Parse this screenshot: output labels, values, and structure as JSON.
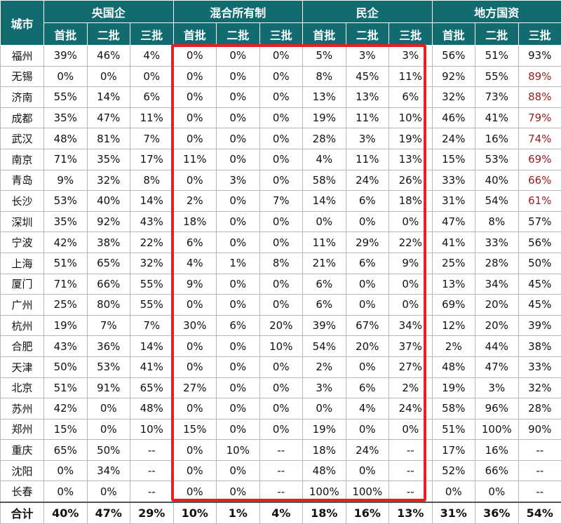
{
  "header": {
    "city_label": "城市",
    "groups": [
      "央国企",
      "混合所有制",
      "民企",
      "地方国资"
    ],
    "sub": [
      "首批",
      "二批",
      "三批"
    ]
  },
  "rows": [
    {
      "city": "福州",
      "v": [
        "39%",
        "46%",
        "4%",
        "0%",
        "0%",
        "0%",
        "5%",
        "3%",
        "3%",
        "56%",
        "51%",
        "93%"
      ]
    },
    {
      "city": "无锡",
      "v": [
        "0%",
        "0%",
        "0%",
        "0%",
        "0%",
        "0%",
        "8%",
        "45%",
        "11%",
        "92%",
        "55%",
        "89%"
      ]
    },
    {
      "city": "济南",
      "v": [
        "55%",
        "14%",
        "6%",
        "0%",
        "0%",
        "0%",
        "13%",
        "13%",
        "6%",
        "32%",
        "73%",
        "88%"
      ]
    },
    {
      "city": "成都",
      "v": [
        "35%",
        "47%",
        "11%",
        "0%",
        "0%",
        "0%",
        "19%",
        "11%",
        "10%",
        "46%",
        "41%",
        "79%"
      ]
    },
    {
      "city": "武汉",
      "v": [
        "48%",
        "81%",
        "7%",
        "0%",
        "0%",
        "0%",
        "28%",
        "3%",
        "19%",
        "24%",
        "16%",
        "74%"
      ]
    },
    {
      "city": "南京",
      "v": [
        "71%",
        "35%",
        "17%",
        "11%",
        "0%",
        "0%",
        "4%",
        "11%",
        "13%",
        "15%",
        "53%",
        "69%"
      ]
    },
    {
      "city": "青岛",
      "v": [
        "9%",
        "32%",
        "8%",
        "0%",
        "3%",
        "0%",
        "58%",
        "24%",
        "26%",
        "33%",
        "40%",
        "66%"
      ]
    },
    {
      "city": "长沙",
      "v": [
        "53%",
        "40%",
        "14%",
        "2%",
        "0%",
        "7%",
        "14%",
        "6%",
        "18%",
        "31%",
        "54%",
        "61%"
      ]
    },
    {
      "city": "深圳",
      "v": [
        "35%",
        "92%",
        "43%",
        "18%",
        "0%",
        "0%",
        "0%",
        "0%",
        "0%",
        "47%",
        "8%",
        "57%"
      ]
    },
    {
      "city": "宁波",
      "v": [
        "42%",
        "38%",
        "22%",
        "6%",
        "0%",
        "0%",
        "11%",
        "29%",
        "22%",
        "41%",
        "33%",
        "56%"
      ]
    },
    {
      "city": "上海",
      "v": [
        "51%",
        "65%",
        "32%",
        "4%",
        "1%",
        "8%",
        "21%",
        "6%",
        "9%",
        "25%",
        "28%",
        "50%"
      ]
    },
    {
      "city": "厦门",
      "v": [
        "71%",
        "66%",
        "55%",
        "9%",
        "0%",
        "0%",
        "6%",
        "0%",
        "0%",
        "13%",
        "34%",
        "45%"
      ]
    },
    {
      "city": "广州",
      "v": [
        "25%",
        "80%",
        "55%",
        "0%",
        "0%",
        "0%",
        "6%",
        "0%",
        "0%",
        "69%",
        "20%",
        "45%"
      ]
    },
    {
      "city": "杭州",
      "v": [
        "19%",
        "7%",
        "7%",
        "30%",
        "6%",
        "20%",
        "39%",
        "67%",
        "34%",
        "12%",
        "20%",
        "39%"
      ]
    },
    {
      "city": "合肥",
      "v": [
        "43%",
        "36%",
        "14%",
        "0%",
        "0%",
        "10%",
        "54%",
        "20%",
        "37%",
        "2%",
        "44%",
        "38%"
      ]
    },
    {
      "city": "天津",
      "v": [
        "50%",
        "53%",
        "41%",
        "0%",
        "0%",
        "0%",
        "2%",
        "0%",
        "27%",
        "48%",
        "47%",
        "33%"
      ]
    },
    {
      "city": "北京",
      "v": [
        "51%",
        "91%",
        "65%",
        "27%",
        "0%",
        "0%",
        "3%",
        "6%",
        "2%",
        "19%",
        "3%",
        "32%"
      ]
    },
    {
      "city": "苏州",
      "v": [
        "42%",
        "0%",
        "48%",
        "0%",
        "0%",
        "0%",
        "0%",
        "4%",
        "24%",
        "58%",
        "96%",
        "28%"
      ]
    },
    {
      "city": "郑州",
      "v": [
        "15%",
        "0%",
        "10%",
        "15%",
        "0%",
        "0%",
        "19%",
        "0%",
        "0%",
        "51%",
        "100%",
        "90%"
      ]
    },
    {
      "city": "重庆",
      "v": [
        "65%",
        "50%",
        "--",
        "0%",
        "10%",
        "--",
        "18%",
        "24%",
        "--",
        "17%",
        "16%",
        "--"
      ]
    },
    {
      "city": "沈阳",
      "v": [
        "0%",
        "34%",
        "--",
        "0%",
        "0%",
        "--",
        "48%",
        "0%",
        "--",
        "52%",
        "66%",
        "--"
      ]
    },
    {
      "city": "长春",
      "v": [
        "0%",
        "0%",
        "--",
        "0%",
        "0%",
        "--",
        "100%",
        "100%",
        "--",
        "0%",
        "0%",
        "--"
      ]
    }
  ],
  "total": {
    "city": "合计",
    "v": [
      "40%",
      "47%",
      "29%",
      "10%",
      "1%",
      "4%",
      "18%",
      "16%",
      "13%",
      "31%",
      "36%",
      "54%"
    ]
  },
  "red_rows": [
    1,
    2,
    3,
    4,
    5,
    6,
    7
  ],
  "colors": {
    "header_bg": "#116b6f",
    "highlight": "#e8201c",
    "emphasis_text": "#9b1b1b"
  }
}
